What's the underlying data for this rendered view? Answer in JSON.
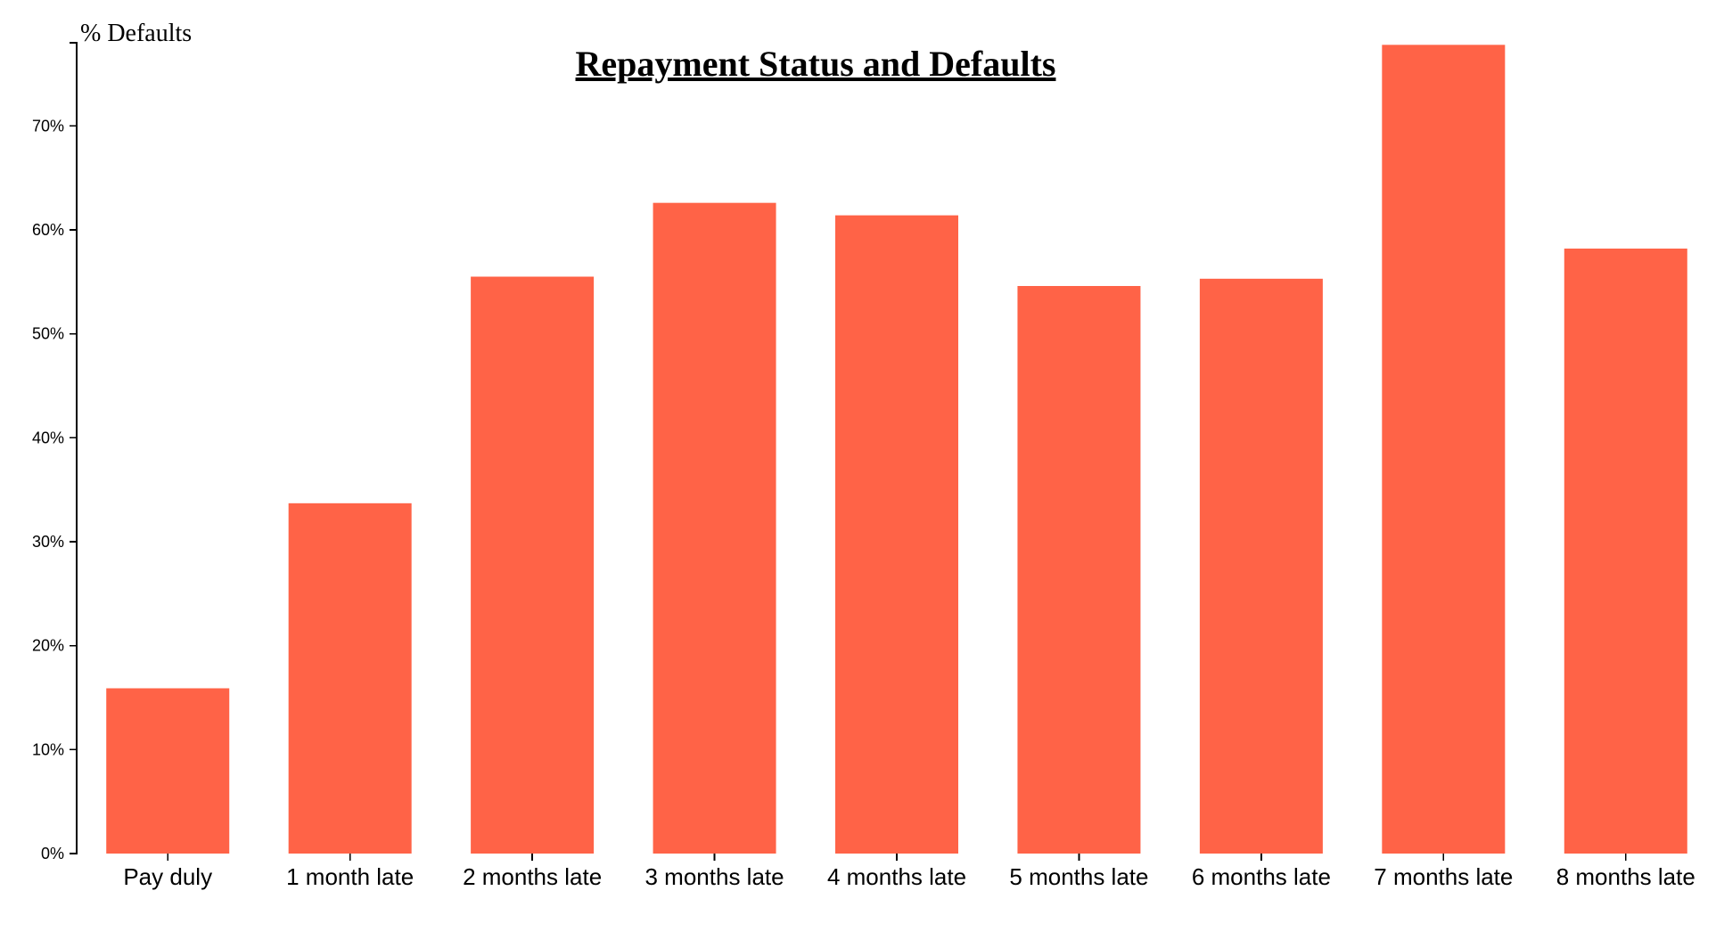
{
  "chart_data": {
    "type": "bar",
    "title": "Repayment Status and Defaults",
    "ylabel": "% Defaults",
    "xlabel": "",
    "categories": [
      "Pay duly",
      "1 month late",
      "2 months late",
      "3 months late",
      "4 months late",
      "5 months late",
      "6 months late",
      "7 months late",
      "8 months late"
    ],
    "values": [
      15.9,
      33.7,
      55.5,
      62.6,
      61.4,
      54.6,
      55.3,
      77.8,
      58.2
    ],
    "ylim": [
      0,
      78
    ],
    "yticks": [
      0,
      10,
      20,
      30,
      40,
      50,
      60,
      70
    ],
    "ytick_labels": [
      "0%",
      "10%",
      "20%",
      "30%",
      "40%",
      "50%",
      "60%",
      "70%"
    ],
    "bar_color": "#ff6347",
    "grid": false,
    "legend": "none"
  }
}
